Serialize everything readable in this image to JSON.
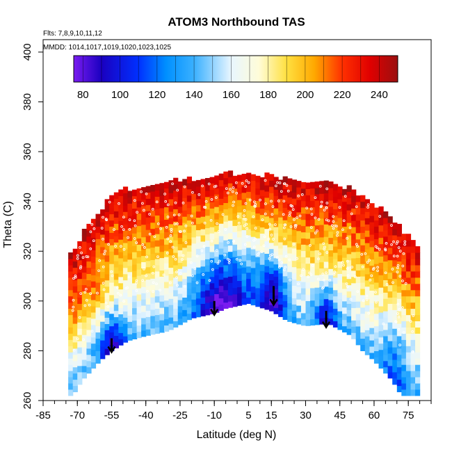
{
  "chart_data": {
    "type": "heatmap",
    "title": "ATOM3 Northbound TAS",
    "notes": [
      "Flts: 7,8,9,10,11,12",
      "MMDD: 1014,1017,1019,1020,1023,1025"
    ],
    "xlabel": "Latitude (deg N)",
    "ylabel": "Theta (C)",
    "xlim": [
      -85,
      85
    ],
    "ylim": [
      260,
      405
    ],
    "x_ticks": [
      -85,
      -70,
      -55,
      -40,
      -25,
      -10,
      5,
      15,
      30,
      45,
      60,
      75
    ],
    "y_ticks": [
      260,
      280,
      300,
      320,
      340,
      360,
      380,
      400
    ],
    "colorbar": {
      "range": [
        75,
        250
      ],
      "ticks": [
        80,
        100,
        120,
        140,
        160,
        180,
        200,
        220,
        240
      ],
      "stops": [
        {
          "v": 75,
          "c": "#7a1cf0"
        },
        {
          "v": 90,
          "c": "#1a00c0"
        },
        {
          "v": 110,
          "c": "#0030ff"
        },
        {
          "v": 125,
          "c": "#0090ff"
        },
        {
          "v": 140,
          "c": "#3ab0ff"
        },
        {
          "v": 160,
          "c": "#e8f6ff"
        },
        {
          "v": 175,
          "c": "#fffcd8"
        },
        {
          "v": 190,
          "c": "#ffe040"
        },
        {
          "v": 205,
          "c": "#ffa800"
        },
        {
          "v": 220,
          "c": "#ff3000"
        },
        {
          "v": 235,
          "c": "#e00000"
        },
        {
          "v": 250,
          "c": "#9a1010"
        }
      ]
    },
    "coverage": {
      "latitudes": [
        -72,
        -68,
        -60,
        -55,
        -48,
        -40,
        -30,
        -20,
        -10,
        -5,
        5,
        15,
        22,
        30,
        40,
        50,
        55,
        60,
        68,
        72,
        75,
        78
      ],
      "theta_top": [
        318,
        326,
        335,
        342,
        344,
        346,
        347,
        348,
        349,
        350,
        350,
        349,
        348,
        347,
        346,
        344,
        341,
        338,
        332,
        328,
        325,
        322
      ],
      "theta_bottom": [
        262,
        268,
        276,
        280,
        284,
        286,
        288,
        293,
        295,
        297,
        299,
        296,
        292,
        290,
        291,
        286,
        280,
        276,
        268,
        262,
        262,
        262
      ]
    },
    "descent_arrows": [
      {
        "lat": -55,
        "theta_from": 285,
        "theta_to": 280
      },
      {
        "lat": -10,
        "theta_from": 300,
        "theta_to": 295
      },
      {
        "lat": 16,
        "theta_from": 306,
        "theta_to": 299
      },
      {
        "lat": 39,
        "theta_from": 296,
        "theta_to": 290
      }
    ],
    "grid": false
  }
}
